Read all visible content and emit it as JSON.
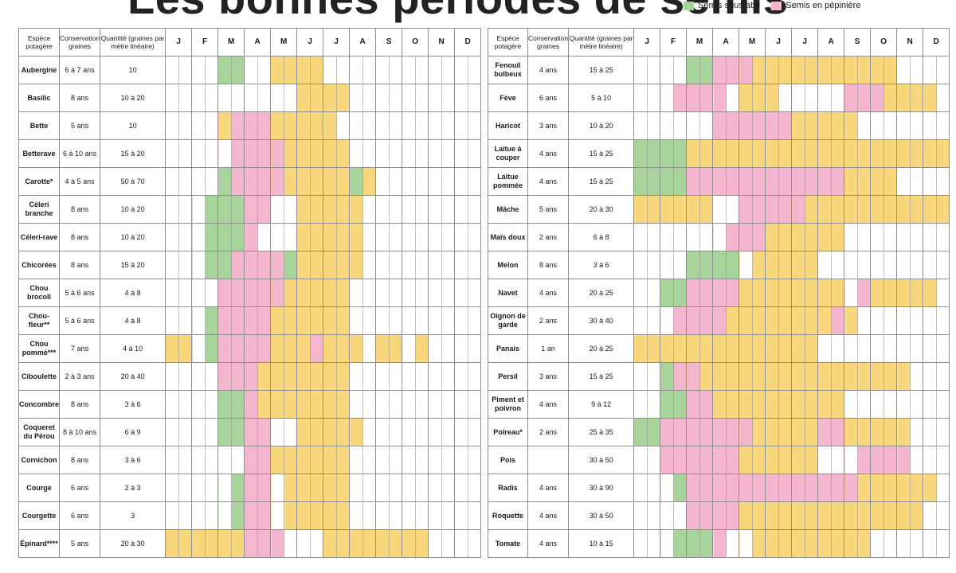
{
  "title": "Les bonnes périodes de semis",
  "legend": [
    {
      "label": "Semis sous abri",
      "color": "#a6d49b"
    },
    {
      "label": "Semis en pépinière",
      "color": "#f4b6cf"
    }
  ],
  "headers": {
    "species": "Espèce potagère",
    "conservation": "Conservation graines",
    "quantity": "Quantité (graines par mètre linéaire)",
    "months": [
      "J",
      "F",
      "M",
      "A",
      "M",
      "J",
      "J",
      "A",
      "S",
      "O",
      "N",
      "D"
    ]
  },
  "colors": {
    "open_ground": "#f8d77d",
    "nursery": "#f4b6cf",
    "shelter": "#a6d49b",
    "grid": "#8f8f8f"
  },
  "left_table": [
    {
      "name": "Aubergine",
      "cons": "6 à 7 ans",
      "qty": "10",
      "cells": "....GG..YYYY............................."
    },
    {
      "name": "Basilic",
      "cons": "8 ans",
      "qty": "10 à 20",
      "cells": "..........YYYY........................"
    },
    {
      "name": "Bette",
      "cons": "5 ans",
      "qty": "10",
      "cells": "....YPPPYYYYY..........."
    },
    {
      "name": "Betterave",
      "cons": "6 à 10 ans",
      "qty": "15 à 20",
      "cells": ".....PPPPYYYYY.........."
    },
    {
      "name": "Carotte*",
      "cons": "4 à 5 ans",
      "qty": "50 à 70",
      "cells": "....GPPPPYYYYYGY........"
    },
    {
      "name": "Céleri branche",
      "cons": "8 ans",
      "qty": "10 à 20",
      "cells": "...GGGPP..YYYYY........."
    },
    {
      "name": "Céleri-rave",
      "cons": "8 ans",
      "qty": "10 à 20",
      "cells": "...GGGP...YYYYY........."
    },
    {
      "name": "Chicorées",
      "cons": "8 ans",
      "qty": "15 à 20",
      "cells": "...GGPPPPGYYYYY........."
    },
    {
      "name": "Chou brocoli",
      "cons": "5 à 6 ans",
      "qty": "4 à 8",
      "cells": "....PPPPPYYYYY.........."
    },
    {
      "name": "Chou-fleur**",
      "cons": "5 à 6 ans",
      "qty": "4 à 8",
      "cells": "...GPPPPYYYYYY.........."
    },
    {
      "name": "Chou pommé***",
      "cons": "7 ans",
      "qty": "4 à 10",
      "cells": "YY.GPPPPYYYPYYY.YY.Y...."
    },
    {
      "name": "Ciboulette",
      "cons": "2 à 3 ans",
      "qty": "20 à 40",
      "cells": "....PPPYYYYYYY.........."
    },
    {
      "name": "Concombre",
      "cons": "8 ans",
      "qty": "3 à 6",
      "cells": "....GGPYYYYYYY.........."
    },
    {
      "name": "Coqueret du Pérou",
      "cons": "8 à 10 ans",
      "qty": "6 à 9",
      "cells": "....GGPP..YYYYY........."
    },
    {
      "name": "Cornichon",
      "cons": "8 ans",
      "qty": "3 à 6",
      "cells": "......PPYYYYYY.........."
    },
    {
      "name": "Courge",
      "cons": "6 ans",
      "qty": "2 à 3",
      "cells": ".....GPP.YYYYY.........."
    },
    {
      "name": "Courgette",
      "cons": "6 ans",
      "qty": "3",
      "cells": ".....GPP.YYYYY.........."
    },
    {
      "name": "Épinard****",
      "cons": "5 ans",
      "qty": "20 à 30",
      "cells": "YYYYYYPPP...YYYYYYYY...."
    }
  ],
  "right_table": [
    {
      "name": "Fenouil bulbeux",
      "cons": "4 ans",
      "qty": "15 à 25",
      "cells": "....GGPPPYYYYYYYYYYY...."
    },
    {
      "name": "Fève",
      "cons": "6 ans",
      "qty": "5 à 10",
      "cells": "...PPPP.YYY.....PPPYYYY."
    },
    {
      "name": "Haricot",
      "cons": "3 ans",
      "qty": "10 à 20",
      "cells": "......PPPPPPYYYYY......."
    },
    {
      "name": "Laitue à couper",
      "cons": "4 ans",
      "qty": "15 à 25",
      "cells": "GGGGYYYYYYYYYYYYYYYYYYYY"
    },
    {
      "name": "Laitue pommée",
      "cons": "4 ans",
      "qty": "15 à 25",
      "cells": "GGGGPPPPPPPPPPPPYYYY...."
    },
    {
      "name": "Mâche",
      "cons": "5 ans",
      "qty": "20 à 30",
      "cells": "YYYYYY..PPPPPYYYYYYYYYYY"
    },
    {
      "name": "Maïs doux",
      "cons": "2 ans",
      "qty": "6 à 8",
      "cells": ".......PPPYYYYYY........"
    },
    {
      "name": "Melon",
      "cons": "8 ans",
      "qty": "3 à 6",
      "cells": "....GGGG.YYYYY.........."
    },
    {
      "name": "Navet",
      "cons": "4 ans",
      "qty": "20 à 25",
      "cells": "..GGPPPPYYYYYYYY.PYYYYY."
    },
    {
      "name": "Oignon de garde",
      "cons": "2 ans",
      "qty": "30 à 40",
      "cells": "...PPPPYYYYYYYYPY......."
    },
    {
      "name": "Panais",
      "cons": "1 an",
      "qty": "20 à 25",
      "cells": "YYYYYYYYYYYYYY.........."
    },
    {
      "name": "Persil",
      "cons": "3 ans",
      "qty": "15 à 25",
      "cells": "..GPPYYYYYYYYYYYYYYYY..."
    },
    {
      "name": "Piment et poivron",
      "cons": "4 ans",
      "qty": "9 à 12",
      "cells": "..GGPPYYYYYYYYYY........"
    },
    {
      "name": "Poireau*",
      "cons": "2 ans",
      "qty": "25 à 35",
      "cells": "GGPPPPPPPYYYYYPPYYYYY..."
    },
    {
      "name": "Pois",
      "cons": "",
      "qty": "30 à 50",
      "cells": "..PPPPPPYYYYYY...PPPP..."
    },
    {
      "name": "Radis",
      "cons": "4 ans",
      "qty": "30 à 90",
      "cells": "...GPPPPPPPPPPPPPYYYYYY."
    },
    {
      "name": "Roquette",
      "cons": "4 ans",
      "qty": "30 à 50",
      "cells": "....PPPPYYYYYYYYYYYYYY.."
    },
    {
      "name": "Tomate",
      "cons": "4 ans",
      "qty": "10 à 15",
      "cells": "...GGGP..YYYYYYYYY......"
    }
  ]
}
